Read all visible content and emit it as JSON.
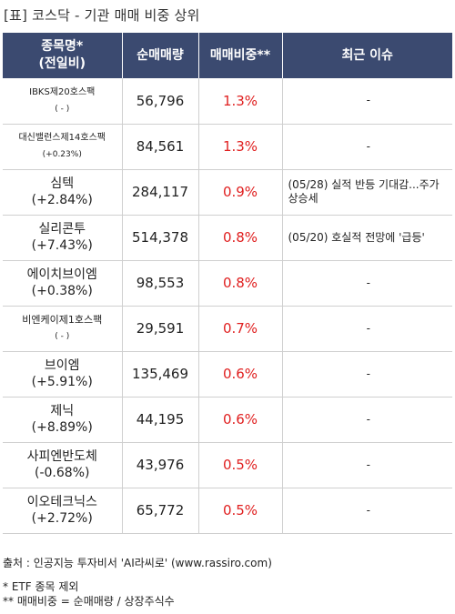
{
  "title": "[표] 코스닥 - 기관 매매 비중 상위",
  "header": {
    "name_line1": "종목명*",
    "name_line2": "(전일비)",
    "volume": "순매매량",
    "ratio": "매매비중**",
    "issue": "최근 이슈"
  },
  "rows": [
    {
      "name": "IBKS제20호스팩",
      "change": "( - )",
      "volume": "56,796",
      "ratio": "1.3%",
      "issue": "-"
    },
    {
      "name": "대신밸런스제14호스팩",
      "change": "(+0.23%)",
      "volume": "84,561",
      "ratio": "1.3%",
      "issue": "-"
    },
    {
      "name": "심텍",
      "change": "(+2.84%)",
      "volume": "284,117",
      "ratio": "0.9%",
      "issue": "(05/28) 실적 반등 기대감...주가 상승세"
    },
    {
      "name": "실리콘투",
      "change": "(+7.43%)",
      "volume": "514,378",
      "ratio": "0.8%",
      "issue": "(05/20) 호실적 전망에 '급등'"
    },
    {
      "name": "에이치브이엠",
      "change": "(+0.38%)",
      "volume": "98,553",
      "ratio": "0.8%",
      "issue": "-"
    },
    {
      "name": "비엔케이제1호스팩",
      "change": "( - )",
      "volume": "29,591",
      "ratio": "0.7%",
      "issue": "-"
    },
    {
      "name": "브이엠",
      "change": "(+5.91%)",
      "volume": "135,469",
      "ratio": "0.6%",
      "issue": "-"
    },
    {
      "name": "제닉",
      "change": "(+8.89%)",
      "volume": "44,195",
      "ratio": "0.6%",
      "issue": "-"
    },
    {
      "name": "사피엔반도체",
      "change": "(-0.68%)",
      "volume": "43,976",
      "ratio": "0.5%",
      "issue": "-"
    },
    {
      "name": "이오테크닉스",
      "change": "(+2.72%)",
      "volume": "65,772",
      "ratio": "0.5%",
      "issue": "-"
    }
  ],
  "footer": {
    "source": "출처 : 인공지능 투자비서 'AI라씨로' (www.rassiro.com)",
    "note1": "* ETF 종목 제외",
    "note2": "** 매매비중 = 순매매량 / 상장주식수"
  }
}
